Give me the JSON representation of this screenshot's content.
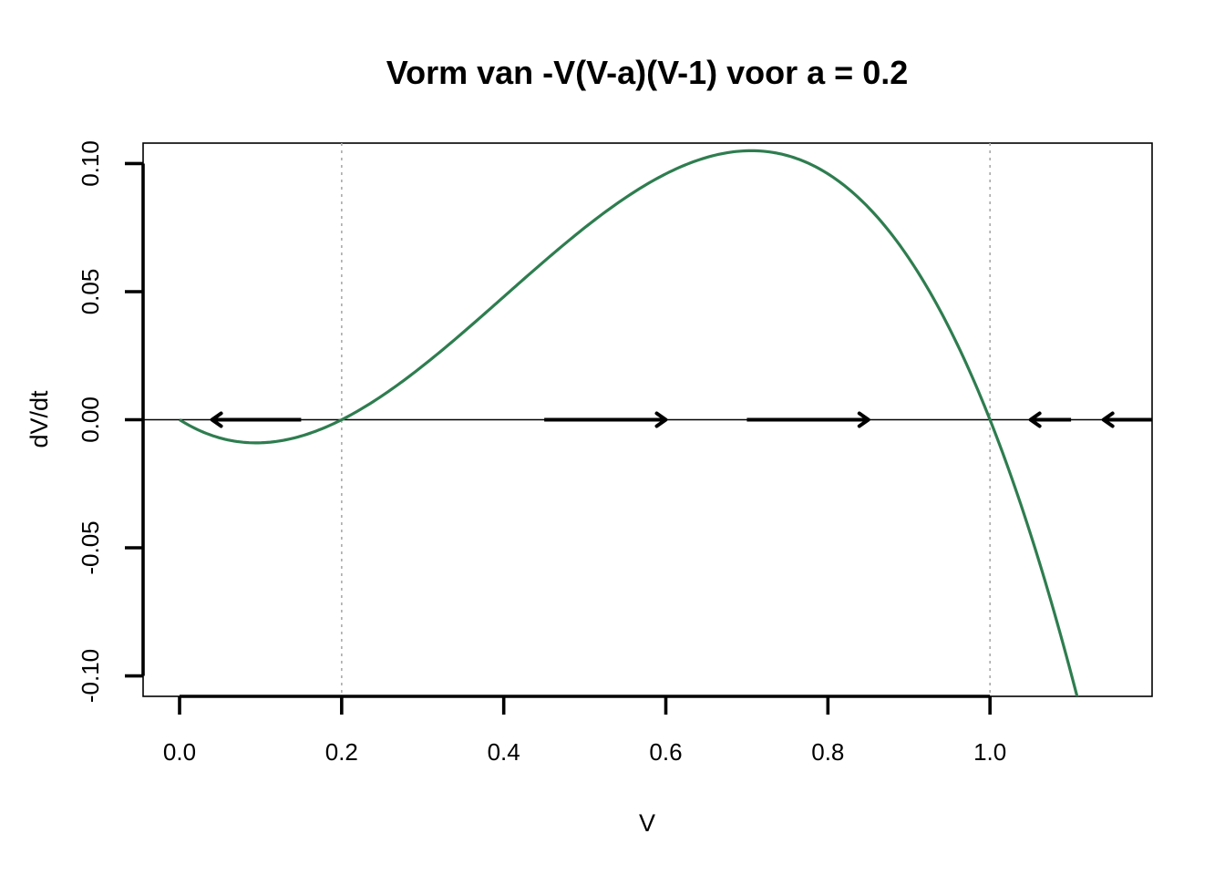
{
  "chart_data": {
    "type": "line",
    "title": "Vorm van -V(V-a)(V-1) voor a = 0.2",
    "xlabel": "V",
    "ylabel": "dV/dt",
    "a": 0.2,
    "xlim": [
      -0.045,
      1.2
    ],
    "ylim": [
      -0.108,
      0.108
    ],
    "x_ticks": [
      0.0,
      0.2,
      0.4,
      0.6,
      0.8,
      1.0
    ],
    "x_tick_labels": [
      "0.0",
      "0.2",
      "0.4",
      "0.6",
      "0.8",
      "1.0"
    ],
    "y_ticks": [
      -0.1,
      -0.05,
      0.0,
      0.05,
      0.1
    ],
    "y_tick_labels": [
      "-0.10",
      "-0.05",
      "0.00",
      "0.05",
      "0.10"
    ],
    "series": [
      {
        "color": "#2E7D4F",
        "x": [
          0.0,
          0.05,
          0.1,
          0.15,
          0.2,
          0.25,
          0.3,
          0.35,
          0.4,
          0.45,
          0.5,
          0.55,
          0.6,
          0.65,
          0.7,
          0.75,
          0.8,
          0.85,
          0.9,
          0.95,
          1.0,
          1.05,
          1.1
        ],
        "y": [
          0.0,
          -0.0071,
          -0.009,
          -0.0064,
          0.0,
          0.0094,
          0.021,
          0.0341,
          0.048,
          0.0619,
          0.075,
          0.0866,
          0.096,
          0.1024,
          0.105,
          0.1031,
          0.096,
          0.0829,
          0.063,
          0.0356,
          0.0,
          -0.0446,
          -0.099
        ]
      }
    ],
    "zero_line": 0.0,
    "vertical_reference_lines": [
      0.2,
      1.0
    ],
    "reference_line_color": "#AAAAAA",
    "flow_arrows": [
      {
        "from": 0.15,
        "to": 0.04,
        "direction": "left"
      },
      {
        "from": 0.45,
        "to": 0.6,
        "direction": "right"
      },
      {
        "from": 0.7,
        "to": 0.85,
        "direction": "right"
      },
      {
        "from": 1.2,
        "to": 1.14,
        "direction": "left"
      },
      {
        "from": 1.1,
        "to": 1.05,
        "direction": "left"
      }
    ],
    "grid": false,
    "legend": "none"
  }
}
